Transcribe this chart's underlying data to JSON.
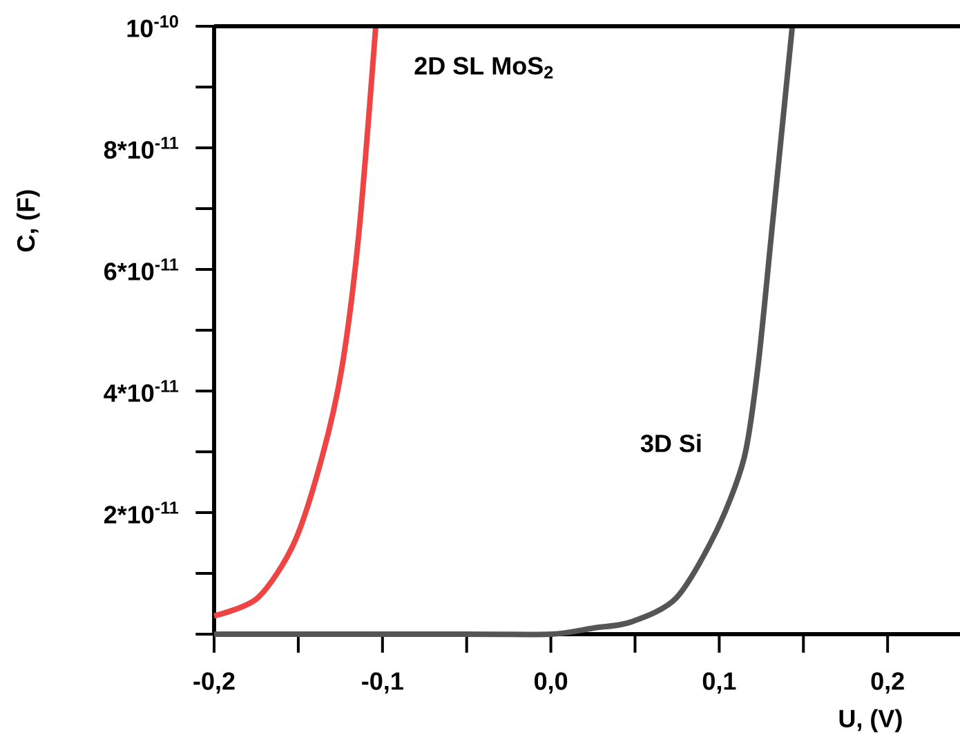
{
  "chart_data": {
    "type": "line",
    "xlabel": "U, (V)",
    "ylabel": "C, (F)",
    "xlim": [
      -0.2,
      0.243
    ],
    "ylim": [
      0,
      1e-10
    ],
    "xticks": [
      {
        "value": -0.2,
        "label": "-0,2"
      },
      {
        "value": -0.15,
        "label": null
      },
      {
        "value": -0.1,
        "label": "-0,1"
      },
      {
        "value": -0.05,
        "label": null
      },
      {
        "value": 0.0,
        "label": "0,0"
      },
      {
        "value": 0.05,
        "label": null
      },
      {
        "value": 0.1,
        "label": "0,1"
      },
      {
        "value": 0.15,
        "label": null
      },
      {
        "value": 0.2,
        "label": "0,2"
      }
    ],
    "yticks": [
      {
        "value": 0,
        "label": null
      },
      {
        "value": 1e-11,
        "label": null
      },
      {
        "value": 2e-11,
        "label": "2*10$^{-11}$"
      },
      {
        "value": 3e-11,
        "label": null
      },
      {
        "value": 4e-11,
        "label": "4*10$^{-11}$"
      },
      {
        "value": 5e-11,
        "label": null
      },
      {
        "value": 6e-11,
        "label": "6*10$^{-11}$"
      },
      {
        "value": 7e-11,
        "label": null
      },
      {
        "value": 8e-11,
        "label": "8*10$^{-11}$"
      },
      {
        "value": 9e-11,
        "label": null
      },
      {
        "value": 1e-10,
        "label": "10$^{-10}$"
      }
    ],
    "marker": "none",
    "line_style": "solid",
    "series": [
      {
        "name": "2D SL MoS$_{2}$",
        "color": "#ee4444",
        "x": [
          -0.2,
          -0.174,
          -0.1525,
          -0.136,
          -0.124,
          -0.114,
          -0.104
        ],
        "values": [
          3e-12,
          6e-12,
          1.5e-11,
          2.9e-11,
          4.4e-11,
          6.6e-11,
          1e-10
        ]
      },
      {
        "name": "3D Si",
        "color": "#555555",
        "x": [
          -0.2,
          -0.05,
          0.0,
          0.025,
          0.0475,
          0.0746,
          0.0984,
          0.1148,
          0.123,
          0.1311,
          0.1434
        ],
        "values": [
          0,
          0,
          0,
          1e-12,
          2e-12,
          6e-12,
          1.7e-11,
          2.9e-11,
          4.4e-11,
          6.6e-11,
          1e-10
        ]
      }
    ]
  }
}
